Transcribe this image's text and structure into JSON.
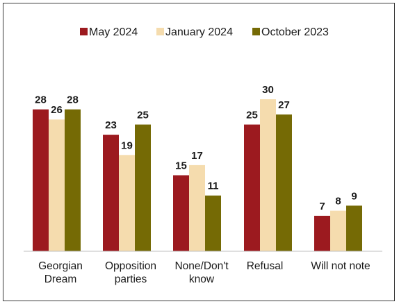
{
  "chart_data": {
    "type": "bar",
    "title": "",
    "xlabel": "",
    "ylabel": "",
    "ylim": [
      0,
      35
    ],
    "grid": false,
    "legend_position": "top",
    "categories": [
      [
        "Georgian",
        "Dream"
      ],
      [
        "Opposition",
        "parties"
      ],
      [
        "None/Don't",
        "know"
      ],
      [
        "Refusal"
      ],
      [
        "Will not note"
      ]
    ],
    "series": [
      {
        "name": "May 2024",
        "color": "#9c1a1f",
        "values": [
          28,
          23,
          15,
          25,
          7
        ]
      },
      {
        "name": "January 2024",
        "color": "#f5dcae",
        "values": [
          26,
          19,
          17,
          30,
          8
        ]
      },
      {
        "name": "October 2023",
        "color": "#756a05",
        "values": [
          28,
          25,
          11,
          27,
          9
        ]
      }
    ]
  }
}
